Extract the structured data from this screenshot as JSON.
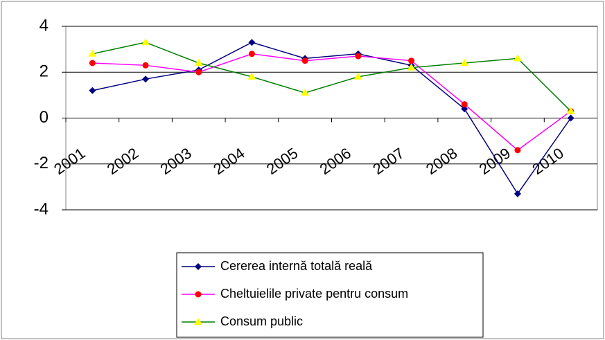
{
  "chart_data": {
    "type": "line",
    "categories": [
      "2001",
      "2002",
      "2003",
      "2004",
      "2005",
      "2006",
      "2007",
      "2008",
      "2009",
      "2010"
    ],
    "series": [
      {
        "name": "Cererea internă totală reală",
        "color": "#000080",
        "marker_color": "#000080",
        "marker": "diamond",
        "values": [
          1.2,
          1.7,
          2.1,
          3.3,
          2.6,
          2.8,
          2.3,
          0.4,
          -3.3,
          0.0
        ]
      },
      {
        "name": "Cheltuielile private pentru consum",
        "color": "#ff00ff",
        "marker_color": "#ff0000",
        "marker": "circle",
        "values": [
          2.4,
          2.3,
          2.0,
          2.8,
          2.5,
          2.7,
          2.5,
          0.6,
          -1.4,
          0.3
        ]
      },
      {
        "name": "Consum public",
        "color": "#008000",
        "marker_color": "#ffff00",
        "marker": "triangle",
        "values": [
          2.8,
          3.3,
          2.4,
          1.8,
          1.1,
          1.8,
          2.2,
          2.4,
          2.6,
          0.3
        ]
      }
    ],
    "ylim": [
      -4,
      4
    ],
    "yticks": [
      -4,
      -2,
      0,
      2,
      4
    ],
    "grid": true
  }
}
